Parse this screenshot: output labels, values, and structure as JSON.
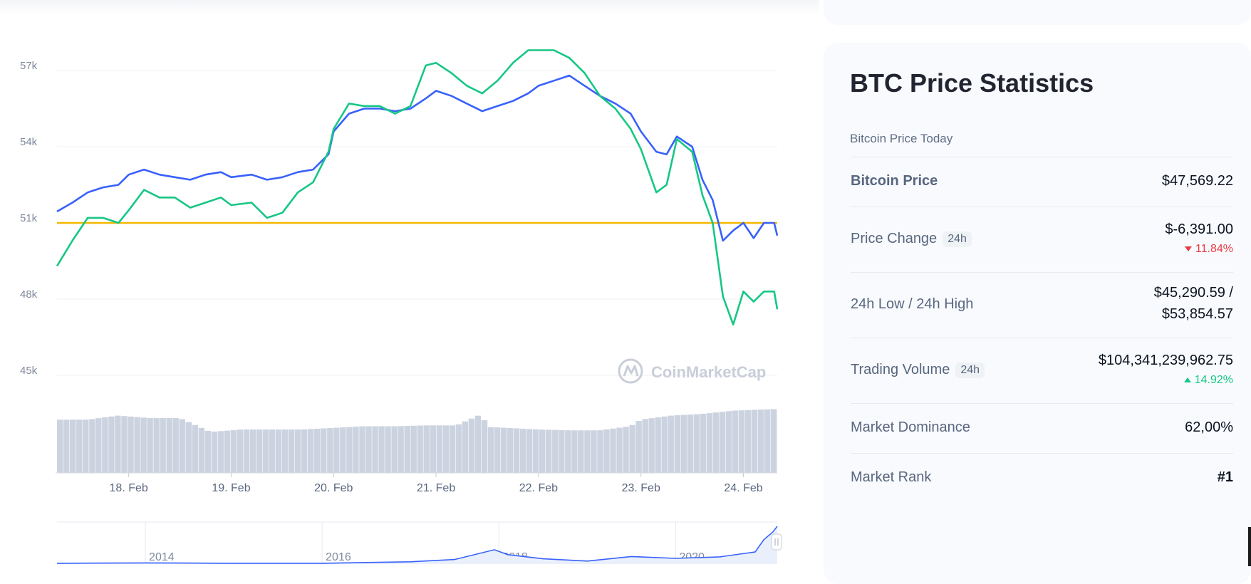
{
  "chart_data": {
    "type": "line",
    "y_ticks": [
      "57k",
      "54k",
      "51k",
      "48k",
      "45k"
    ],
    "y_tick_values": [
      57000,
      54000,
      51000,
      48000,
      45000
    ],
    "ylim": [
      45000,
      57000
    ],
    "x_ticks": [
      "18. Feb",
      "19. Feb",
      "20. Feb",
      "21. Feb",
      "22. Feb",
      "23. Feb",
      "24. Feb"
    ],
    "xlim": [
      17.3,
      24.33
    ],
    "reference_line": {
      "value": 51000,
      "color": "#f5b700"
    },
    "series": [
      {
        "color": "#3861fb",
        "x": [
          17.3,
          17.45,
          17.6,
          17.75,
          17.9,
          18.0,
          18.15,
          18.3,
          18.45,
          18.6,
          18.75,
          18.9,
          19.0,
          19.2,
          19.35,
          19.5,
          19.65,
          19.8,
          19.95,
          20.0,
          20.15,
          20.3,
          20.45,
          20.6,
          20.75,
          20.9,
          21.0,
          21.15,
          21.3,
          21.45,
          21.6,
          21.75,
          21.9,
          22.0,
          22.15,
          22.3,
          22.45,
          22.6,
          22.75,
          22.9,
          23.0,
          23.15,
          23.25,
          23.35,
          23.5,
          23.6,
          23.7,
          23.8,
          23.9,
          24.0,
          24.1,
          24.2,
          24.3,
          24.33
        ],
        "values": [
          51450,
          51800,
          52200,
          52400,
          52500,
          52900,
          53100,
          52900,
          52800,
          52700,
          52900,
          53000,
          52800,
          52900,
          52700,
          52800,
          53000,
          53100,
          53700,
          54600,
          55300,
          55500,
          55500,
          55400,
          55500,
          55900,
          56200,
          56000,
          55700,
          55400,
          55600,
          55800,
          56100,
          56400,
          56600,
          56800,
          56400,
          56000,
          55700,
          55300,
          54600,
          53800,
          53700,
          54400,
          54000,
          52700,
          51900,
          50300,
          50700,
          51000,
          50400,
          51000,
          51000,
          50500
        ]
      },
      {
        "color": "#16c784",
        "x": [
          17.3,
          17.45,
          17.6,
          17.75,
          17.9,
          18.0,
          18.15,
          18.3,
          18.45,
          18.6,
          18.75,
          18.9,
          19.0,
          19.2,
          19.35,
          19.5,
          19.65,
          19.8,
          19.95,
          20.0,
          20.15,
          20.3,
          20.45,
          20.6,
          20.75,
          20.9,
          21.0,
          21.15,
          21.3,
          21.45,
          21.6,
          21.75,
          21.9,
          22.0,
          22.15,
          22.3,
          22.45,
          22.6,
          22.75,
          22.9,
          23.0,
          23.15,
          23.25,
          23.35,
          23.5,
          23.6,
          23.7,
          23.8,
          23.9,
          24.0,
          24.1,
          24.2,
          24.3,
          24.33
        ],
        "values": [
          49300,
          50300,
          51200,
          51200,
          51000,
          51500,
          52300,
          52000,
          52000,
          51600,
          51800,
          52000,
          51700,
          51800,
          51200,
          51400,
          52200,
          52600,
          53800,
          54700,
          55700,
          55600,
          55600,
          55300,
          55600,
          57200,
          57300,
          56900,
          56400,
          56100,
          56600,
          57300,
          57800,
          57800,
          57800,
          57500,
          56900,
          56000,
          55500,
          54700,
          53900,
          52200,
          52500,
          54300,
          53800,
          52100,
          51000,
          48100,
          47000,
          48300,
          47900,
          48300,
          48300,
          47600
        ]
      }
    ],
    "volume_bars": {
      "color": "#ccd3e0",
      "x": [
        17.3,
        17.6,
        17.9,
        18.2,
        18.5,
        18.8,
        19.1,
        19.4,
        19.7,
        20.0,
        20.3,
        20.6,
        20.9,
        21.2,
        21.45,
        21.5,
        21.7,
        22.0,
        22.3,
        22.6,
        22.9,
        23.0,
        23.3,
        23.6,
        23.9,
        24.1,
        24.33
      ],
      "values": [
        65,
        65,
        70,
        67,
        67,
        50,
        53,
        53,
        53,
        55,
        57,
        57,
        58,
        58,
        72,
        56,
        55,
        53,
        52,
        52,
        57,
        65,
        70,
        72,
        76,
        77,
        78
      ]
    },
    "navigator": {
      "x_ticks": [
        "2014",
        "2016",
        "2018",
        "2020"
      ],
      "xlim": [
        2013.0,
        2021.15
      ],
      "x": [
        2013.0,
        2014.0,
        2015.0,
        2016.0,
        2017.0,
        2017.5,
        2017.95,
        2018.1,
        2018.5,
        2019.0,
        2019.5,
        2020.0,
        2020.5,
        2020.9,
        2021.0,
        2021.1,
        2021.15
      ],
      "values": [
        0.02,
        0.03,
        0.02,
        0.02,
        0.06,
        0.12,
        0.38,
        0.25,
        0.14,
        0.08,
        0.2,
        0.15,
        0.19,
        0.32,
        0.65,
        0.85,
        1.0
      ]
    },
    "watermark": "CoinMarketCap"
  },
  "stats": {
    "title": "BTC Price Statistics",
    "subtitle": "Bitcoin Price Today",
    "rows": [
      {
        "label": "Bitcoin Price",
        "value": "$47,569.22"
      },
      {
        "label": "Price Change",
        "badge": "24h",
        "value": "$-6,391.00",
        "pct": "11.84%"
      },
      {
        "label": "24h Low / 24h High",
        "value_line1": "$45,290.59 /",
        "value_line2": "$53,854.57"
      },
      {
        "label": "Trading Volume",
        "badge": "24h",
        "value": "$104,341,239,962.75",
        "pct": "14.92%"
      },
      {
        "label": "Market Dominance",
        "value": "62,00%"
      },
      {
        "label": "Market Rank",
        "value": "#1"
      }
    ]
  },
  "colors": {
    "accent_blue": "#3861fb",
    "up": "#16c784",
    "down": "#ea3943",
    "panel_bg": "#f8fafd"
  }
}
